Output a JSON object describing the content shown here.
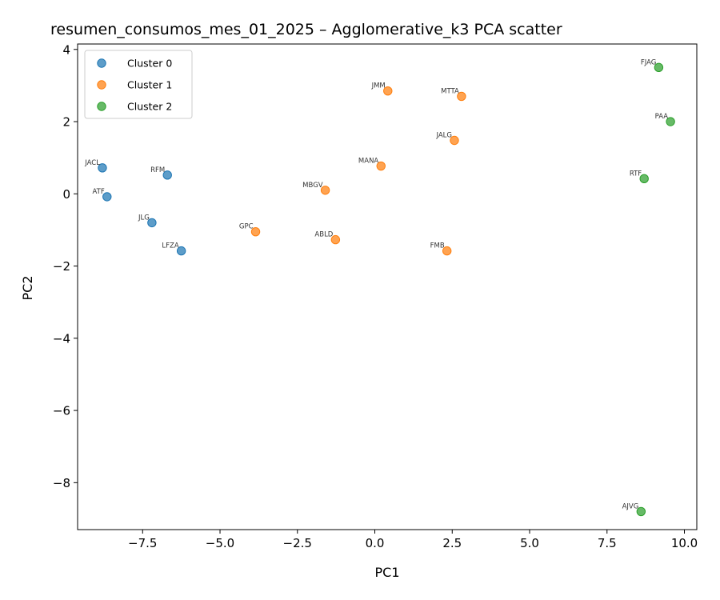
{
  "chart_data": {
    "type": "scatter",
    "title": "resumen_consumos_mes_01_2025 – Agglomerative_k3 PCA scatter",
    "xlabel": "PC1",
    "ylabel": "PC2",
    "xlim": [
      -9.6,
      10.4
    ],
    "ylim": [
      -9.3,
      4.15
    ],
    "xticks": [
      -7.5,
      -5.0,
      -2.5,
      0.0,
      2.5,
      5.0,
      7.5,
      10.0
    ],
    "xtick_labels": [
      "−7.5",
      "−5.0",
      "−2.5",
      "0.0",
      "2.5",
      "5.0",
      "7.5",
      "10.0"
    ],
    "yticks": [
      4,
      2,
      0,
      -2,
      -4,
      -6,
      -8
    ],
    "ytick_labels": [
      "4",
      "2",
      "0",
      "−2",
      "−4",
      "−6",
      "−8"
    ],
    "grid": false,
    "legend_position": "top-left",
    "series": [
      {
        "name": "Cluster 0",
        "color": "#1f77b4",
        "points": [
          {
            "label": "JACL",
            "x": -8.8,
            "y": 0.72
          },
          {
            "label": "RFM",
            "x": -6.7,
            "y": 0.52
          },
          {
            "label": "ATF",
            "x": -8.65,
            "y": -0.08
          },
          {
            "label": "JLG",
            "x": -7.2,
            "y": -0.8
          },
          {
            "label": "LFZA",
            "x": -6.25,
            "y": -1.58
          }
        ]
      },
      {
        "name": "Cluster 1",
        "color": "#ff7f0e",
        "points": [
          {
            "label": "JMM",
            "x": 0.42,
            "y": 2.85
          },
          {
            "label": "MTTA",
            "x": 2.8,
            "y": 2.7
          },
          {
            "label": "JALG",
            "x": 2.57,
            "y": 1.48
          },
          {
            "label": "MANA",
            "x": 0.2,
            "y": 0.77
          },
          {
            "label": "MBGV",
            "x": -1.6,
            "y": 0.1
          },
          {
            "label": "GPC",
            "x": -3.85,
            "y": -1.05
          },
          {
            "label": "ABLD",
            "x": -1.27,
            "y": -1.27
          },
          {
            "label": "FMB",
            "x": 2.33,
            "y": -1.58
          }
        ]
      },
      {
        "name": "Cluster 2",
        "color": "#2ca02c",
        "points": [
          {
            "label": "FJAG",
            "x": 9.17,
            "y": 3.5
          },
          {
            "label": "PAA",
            "x": 9.55,
            "y": 2.0
          },
          {
            "label": "RTF",
            "x": 8.7,
            "y": 0.42
          },
          {
            "label": "AJVG",
            "x": 8.6,
            "y": -8.8
          }
        ]
      }
    ]
  }
}
